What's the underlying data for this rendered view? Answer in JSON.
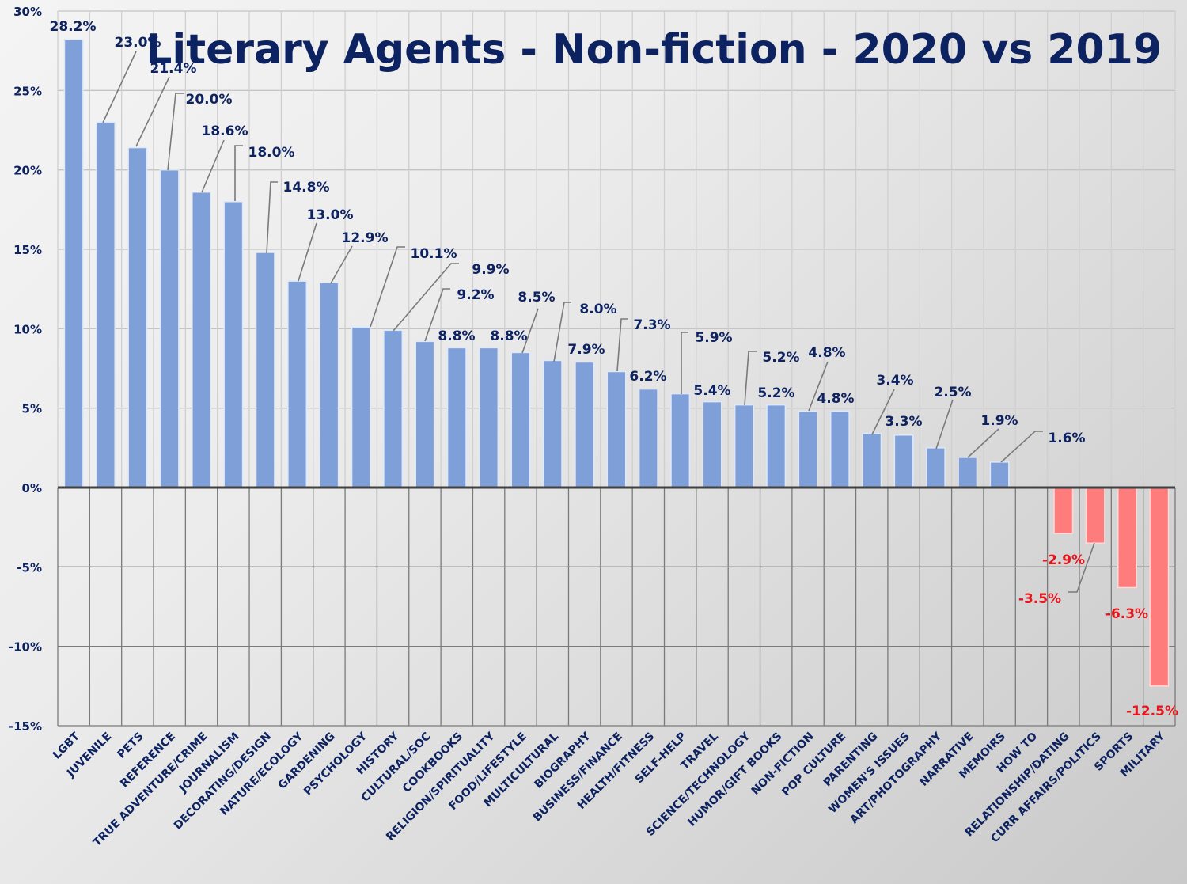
{
  "chart_data": {
    "type": "bar",
    "title": "Literary Agents - Non-fiction - 2020 vs 2019",
    "xlabel": "",
    "ylabel": "",
    "ylim": [
      -15,
      30
    ],
    "yticks": [
      30,
      25,
      20,
      15,
      10,
      5,
      0,
      -5,
      -10,
      -15
    ],
    "ytick_labels": [
      "30%",
      "25%",
      "20%",
      "15%",
      "10%",
      "5%",
      "0%",
      "-5%",
      "-10%",
      "-15%"
    ],
    "grid": true,
    "legend": "none",
    "colors": {
      "positive": "#7f9fd8",
      "negative": "#ff7c7c",
      "label_positive": "#0d2260",
      "label_negative": "#e8141b",
      "axis_text": "#0d2260"
    },
    "categories": [
      "LGBT",
      "JUVENILE",
      "PETS",
      "REFERENCE",
      "TRUE ADVENTURE/CRIME",
      "JOURNALISM",
      "DECORATING/DESIGN",
      "NATURE/ECOLOGY",
      "GARDENING",
      "PSYCHOLOGY",
      "HISTORY",
      "CULTURAL/SOC",
      "COOKBOOKS",
      "RELIGION/SPIRITUALITY",
      "FOOD/LIFESTYLE",
      "MULTICULTURAL",
      "BIOGRAPHY",
      "BUSINESS/FINANCE",
      "HEALTH/FITNESS",
      "SELF-HELP",
      "TRAVEL",
      "SCIENCE/TECHNOLOGY",
      "HUMOR/GIFT BOOKS",
      "NON-FICTION",
      "POP CULTURE",
      "PARENTING",
      "WOMEN'S ISSUES",
      "ART/PHOTOGRAPHY",
      "NARRATIVE",
      "MEMOIRS",
      "HOW TO",
      "RELATIONSHIP/DATING",
      "CURR AFFAIRS/POLITICS",
      "SPORTS",
      "MILITARY"
    ],
    "values": [
      28.2,
      23.0,
      21.4,
      20.0,
      18.6,
      18.0,
      14.8,
      13.0,
      12.9,
      10.1,
      9.9,
      9.2,
      8.8,
      8.8,
      8.5,
      8.0,
      7.9,
      7.3,
      6.2,
      5.9,
      5.4,
      5.2,
      5.2,
      4.8,
      4.8,
      3.4,
      3.3,
      2.5,
      1.9,
      1.6,
      null,
      -2.9,
      -3.5,
      -6.3,
      -12.5
    ],
    "data_labels": [
      "28.2%",
      "23.0%",
      "21.4%",
      "20.0%",
      "18.6%",
      "18.0%",
      "14.8%",
      "13.0%",
      "12.9%",
      "10.1%",
      "9.9%",
      "9.2%",
      "8.8%",
      "8.8%",
      "8.5%",
      "8.0%",
      "7.9%",
      "7.3%",
      "6.2%",
      "5.9%",
      "5.4%",
      "5.2%",
      "5.2%",
      "4.8%",
      "4.8%",
      "3.4%",
      "3.3%",
      "2.5%",
      "1.9%",
      "1.6%",
      "",
      "-2.9%",
      "-3.5%",
      "-6.3%",
      "-12.5%"
    ]
  }
}
